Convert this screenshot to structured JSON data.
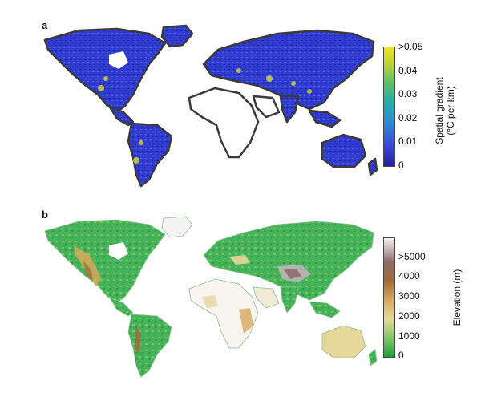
{
  "panels": [
    {
      "label": "a",
      "colorbar_title_line1": "Spatial gradient",
      "colorbar_title_line2": "(°C per km)",
      "ticks": [
        ">0.05",
        "0.04",
        "0.03",
        "0.02",
        "0.01",
        "0"
      ],
      "colors": [
        "#2a1e9e",
        "#3a49d8",
        "#2a8fd6",
        "#23b0a6",
        "#5cc062",
        "#b7d23a",
        "#f7e11f"
      ]
    },
    {
      "label": "b",
      "colorbar_title": "Elevation (m)",
      "ticks": [
        ">5000",
        "4000",
        "3000",
        "2000",
        "1000",
        "0"
      ],
      "colors": [
        "#1e9e3a",
        "#7cc66a",
        "#e6d79a",
        "#d7a95c",
        "#a06b3a",
        "#8e6b6b",
        "#f4f4f4"
      ]
    }
  ]
}
